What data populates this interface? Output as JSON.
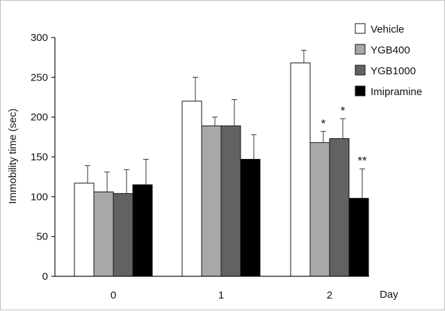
{
  "chart_data": {
    "type": "bar",
    "title": "",
    "xlabel": "Day",
    "ylabel": "Immobility time (sec)",
    "ylim": [
      0,
      300
    ],
    "yticks": [
      0,
      50,
      100,
      150,
      200,
      250,
      300
    ],
    "categories": [
      "0",
      "1",
      "2"
    ],
    "grid": false,
    "legend_position": "top-right",
    "series": [
      {
        "name": "Vehicle",
        "color": "#ffffff",
        "values": [
          117,
          220,
          268
        ],
        "errors": [
          22,
          30,
          16
        ]
      },
      {
        "name": "YGB400",
        "color": "#a8a8a8",
        "values": [
          106,
          189,
          168
        ],
        "errors": [
          25,
          11,
          14
        ]
      },
      {
        "name": "YGB1000",
        "color": "#626262",
        "values": [
          104,
          189,
          173
        ],
        "errors": [
          30,
          33,
          25
        ]
      },
      {
        "name": "Imipramine",
        "color": "#000000",
        "values": [
          115,
          147,
          98
        ],
        "errors": [
          32,
          31,
          37
        ]
      }
    ],
    "annotations": [
      {
        "category": "2",
        "series": "YGB400",
        "text": "*"
      },
      {
        "category": "2",
        "series": "YGB1000",
        "text": "*"
      },
      {
        "category": "2",
        "series": "Imipramine",
        "text": "**"
      }
    ]
  }
}
